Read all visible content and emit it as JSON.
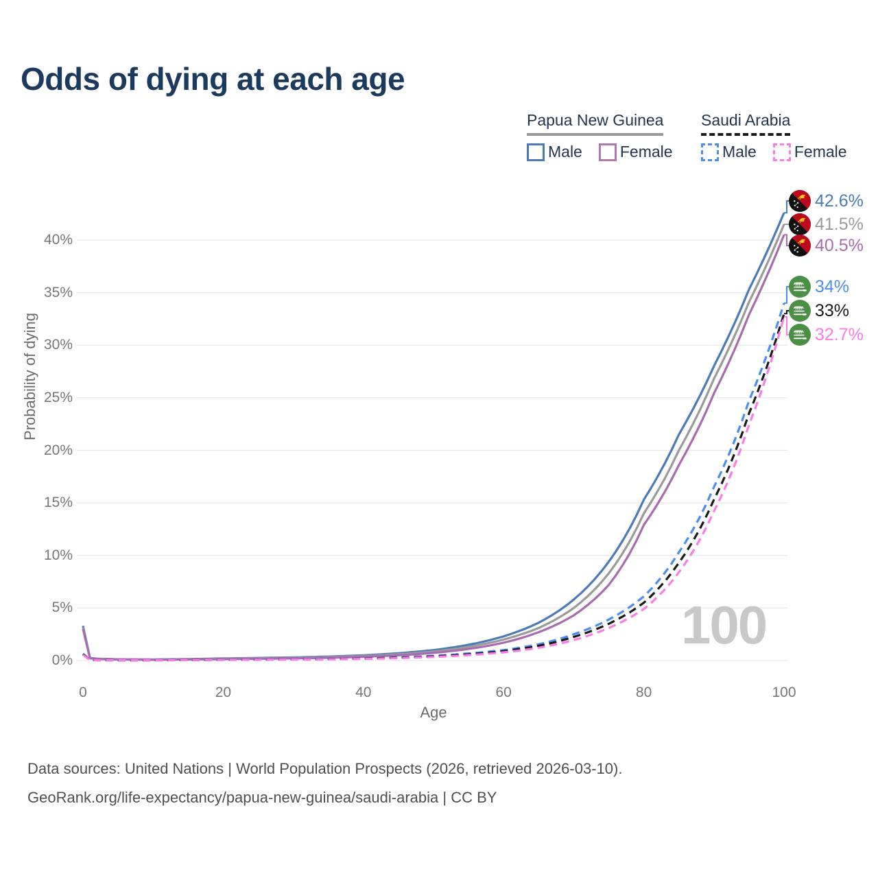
{
  "title": "Odds of dying at each age",
  "legend": {
    "groups": [
      {
        "label": "Papua New Guinea",
        "line_style": "solid",
        "underline_color": "#9a9a9a",
        "items": [
          {
            "label": "Male",
            "color": "#4a7ab8"
          },
          {
            "label": "Female",
            "color": "#b176b4"
          }
        ]
      },
      {
        "label": "Saudi Arabia",
        "line_style": "dashed",
        "underline_color": "#1a1a1a",
        "items": [
          {
            "label": "Male",
            "color": "#4c8df0"
          },
          {
            "label": "Female",
            "color": "#fb7ce8"
          }
        ]
      }
    ]
  },
  "watermark": "100",
  "footer": {
    "line1": "Data sources: United Nations | World Population Prospects (2026, retrieved 2026-03-10).",
    "line2": "GeoRank.org/life-expectancy/papua-new-guinea/saudi-arabia | CC BY"
  },
  "chart_data": {
    "type": "line",
    "title": "Odds of dying at each age",
    "xlabel": "Age",
    "ylabel": "Probability of dying",
    "xlim": [
      0,
      100
    ],
    "ylim": [
      0,
      44
    ],
    "grid": true,
    "x_tick_values": [
      0,
      20,
      40,
      60,
      80,
      100
    ],
    "x_ticks": [
      "0",
      "20",
      "40",
      "60",
      "80",
      "100"
    ],
    "y_tick_values": [
      0,
      5,
      10,
      15,
      20,
      25,
      30,
      35,
      40
    ],
    "y_ticks": [
      "0%",
      "5%",
      "10%",
      "15%",
      "20%",
      "25%",
      "30%",
      "35%",
      "40%"
    ],
    "unit": "percent probability of dying at each age",
    "ages": [
      0,
      1,
      2,
      5,
      10,
      15,
      20,
      25,
      30,
      35,
      40,
      45,
      50,
      55,
      60,
      65,
      70,
      75,
      80,
      85,
      90,
      95,
      100
    ],
    "series": [
      {
        "name": "Papua New Guinea — Male",
        "country": "Papua New Guinea",
        "sex": "Male",
        "color": "#4a7ab8",
        "dash": false,
        "end_label": "42.6%",
        "values": [
          3.3,
          0.25,
          0.18,
          0.12,
          0.1,
          0.14,
          0.2,
          0.25,
          0.3,
          0.38,
          0.5,
          0.7,
          1.0,
          1.5,
          2.3,
          3.6,
          5.8,
          9.4,
          15.3,
          21.5,
          28.0,
          35.3,
          42.6
        ]
      },
      {
        "name": "Papua New Guinea — Both sexes",
        "country": "Papua New Guinea",
        "sex": "Both sexes",
        "color": "#9a9a9a",
        "dash": false,
        "end_label": "41.5%",
        "values": [
          3.15,
          0.23,
          0.17,
          0.11,
          0.09,
          0.12,
          0.17,
          0.21,
          0.26,
          0.33,
          0.43,
          0.6,
          0.86,
          1.3,
          2.0,
          3.1,
          5.0,
          8.3,
          14.0,
          20.0,
          26.8,
          34.1,
          41.5
        ]
      },
      {
        "name": "Papua New Guinea — Female",
        "country": "Papua New Guinea",
        "sex": "Female",
        "color": "#a96bb0",
        "dash": false,
        "end_label": "40.5%",
        "values": [
          3.0,
          0.21,
          0.15,
          0.1,
          0.08,
          0.1,
          0.14,
          0.17,
          0.21,
          0.27,
          0.36,
          0.5,
          0.73,
          1.1,
          1.7,
          2.7,
          4.3,
          7.2,
          12.9,
          18.6,
          25.4,
          32.9,
          40.5
        ]
      },
      {
        "name": "Saudi Arabia — Male",
        "country": "Saudi Arabia",
        "sex": "Male",
        "color": "#4c8df0",
        "dash": true,
        "end_label": "34%",
        "values": [
          0.65,
          0.05,
          0.04,
          0.03,
          0.03,
          0.05,
          0.08,
          0.1,
          0.12,
          0.16,
          0.21,
          0.3,
          0.45,
          0.68,
          1.0,
          1.55,
          2.5,
          3.9,
          6.1,
          10.3,
          16.5,
          24.7,
          34.0
        ]
      },
      {
        "name": "Saudi Arabia — Both sexes",
        "country": "Saudi Arabia",
        "sex": "Both sexes",
        "color": "#1a1a1a",
        "dash": true,
        "end_label": "33%",
        "values": [
          0.6,
          0.045,
          0.035,
          0.028,
          0.028,
          0.045,
          0.07,
          0.09,
          0.11,
          0.14,
          0.19,
          0.27,
          0.4,
          0.6,
          0.9,
          1.4,
          2.25,
          3.5,
          5.5,
          9.3,
          15.3,
          23.5,
          33.0
        ]
      },
      {
        "name": "Saudi Arabia — Female",
        "country": "Saudi Arabia",
        "sex": "Female",
        "color": "#fb7ce8",
        "dash": true,
        "end_label": "32.7%",
        "values": [
          0.55,
          0.04,
          0.03,
          0.025,
          0.025,
          0.04,
          0.06,
          0.08,
          0.1,
          0.12,
          0.16,
          0.23,
          0.34,
          0.52,
          0.78,
          1.22,
          1.95,
          3.1,
          4.9,
          8.4,
          14.2,
          22.4,
          32.7
        ]
      }
    ]
  }
}
